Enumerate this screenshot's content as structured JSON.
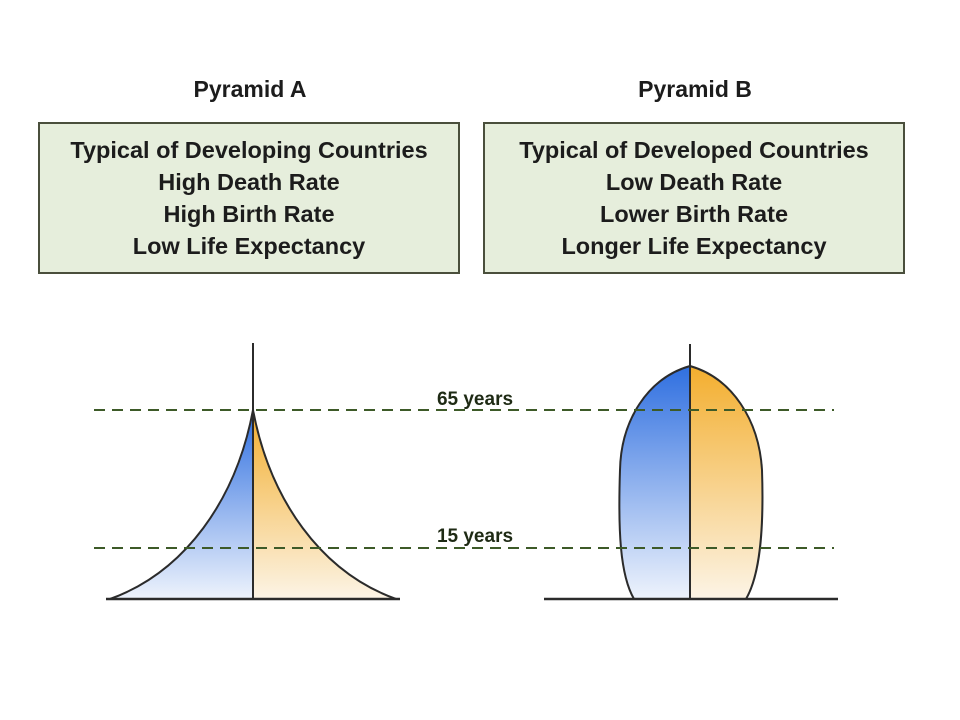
{
  "pyramid_a": {
    "title": "Pyramid A",
    "lines": [
      "Typical of Developing Countries",
      "High Death Rate",
      "High Birth Rate",
      "Low Life Expectancy"
    ]
  },
  "pyramid_b": {
    "title": "Pyramid B",
    "lines": [
      "Typical of Developed Countries",
      "Low Death Rate",
      "Lower Birth Rate",
      "Longer Life Expectancy"
    ]
  },
  "age_markers": {
    "upper": "65 years",
    "lower": "15 years"
  },
  "colors": {
    "male_blue": "#2f6fe0",
    "female_orange": "#f3ae2e",
    "box_fill": "#e6eedc",
    "dashed_line": "#3d5a28"
  }
}
